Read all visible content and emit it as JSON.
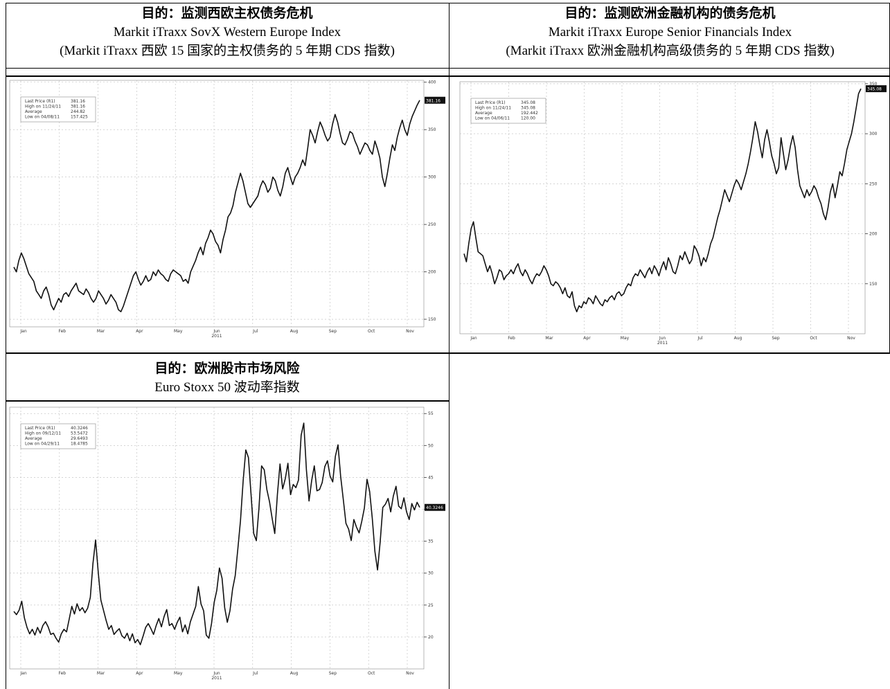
{
  "panels": [
    {
      "title": "目的：监测西欧主权债务危机",
      "subtitle": "Markit iTraxx SovX Western Europe Index",
      "desc": "(Markit iTraxx 西欧 15 国家的主权债务的 5 年期 CDS 指数)"
    },
    {
      "title": "目的：监测欧洲金融机构的债务危机",
      "subtitle": "Markit iTraxx Europe Senior Financials Index",
      "desc": "(Markit iTraxx 欧洲金融机构高级债务的 5 年期 CDS 指数)"
    },
    {
      "title": "目的：欧洲股市市场风险",
      "subtitle": "Euro Stoxx 50 波动率指数",
      "desc": ""
    }
  ],
  "colors": {
    "line": "#111111",
    "grid": "#bbbbbb",
    "border": "#000000",
    "tag_bg": "#111111",
    "tag_text": "#ffffff"
  },
  "chart_data": [
    {
      "type": "line",
      "months": [
        "Jan",
        "Feb",
        "Mar",
        "Apr",
        "May",
        "Jun",
        "Jul",
        "Aug",
        "Sep",
        "Oct",
        "Nov"
      ],
      "year_label": "2011",
      "yticks": [
        150,
        200,
        250,
        300,
        350,
        400
      ],
      "ylim": [
        142,
        402
      ],
      "last_tag": "381.16",
      "legend": [
        {
          "label": "Last Price (R1)",
          "value": "381.16"
        },
        {
          "label": "High on 11/24/11",
          "value": "381.16"
        },
        {
          "label": "Average",
          "value": "244.82"
        },
        {
          "label": "Low on 04/08/11",
          "value": "157.425"
        }
      ],
      "values": [
        205,
        200,
        212,
        220,
        214,
        206,
        198,
        194,
        190,
        180,
        176,
        172,
        180,
        184,
        176,
        165,
        160,
        166,
        172,
        168,
        176,
        178,
        174,
        180,
        184,
        188,
        180,
        178,
        176,
        182,
        178,
        172,
        168,
        172,
        180,
        176,
        172,
        166,
        170,
        176,
        172,
        168,
        160,
        158,
        164,
        172,
        180,
        188,
        196,
        200,
        192,
        186,
        190,
        196,
        190,
        192,
        200,
        196,
        202,
        198,
        196,
        192,
        190,
        198,
        202,
        200,
        198,
        196,
        190,
        192,
        188,
        200,
        206,
        212,
        220,
        226,
        218,
        230,
        236,
        244,
        240,
        232,
        228,
        220,
        234,
        244,
        258,
        262,
        270,
        284,
        294,
        304,
        296,
        284,
        272,
        268,
        272,
        276,
        280,
        290,
        296,
        292,
        284,
        288,
        300,
        296,
        286,
        280,
        290,
        304,
        310,
        300,
        292,
        300,
        304,
        310,
        318,
        312,
        330,
        350,
        344,
        336,
        348,
        358,
        352,
        344,
        338,
        342,
        356,
        366,
        358,
        346,
        336,
        334,
        340,
        348,
        346,
        338,
        332,
        324,
        330,
        336,
        334,
        328,
        324,
        338,
        330,
        320,
        300,
        290,
        304,
        320,
        334,
        328,
        342,
        352,
        360,
        350,
        344,
        356,
        364,
        370,
        376,
        381
      ]
    },
    {
      "type": "line",
      "months": [
        "Jan",
        "Feb",
        "Mar",
        "Apr",
        "May",
        "Jun",
        "Jul",
        "Aug",
        "Sep",
        "Oct",
        "Nov"
      ],
      "year_label": "2011",
      "yticks": [
        150,
        200,
        250,
        300,
        350
      ],
      "ylim": [
        100,
        352
      ],
      "last_tag": "345.08",
      "legend": [
        {
          "label": "Last Price (R1)",
          "value": "345.08"
        },
        {
          "label": "High on 11/24/11",
          "value": "345.08"
        },
        {
          "label": "Average",
          "value": "192.442"
        },
        {
          "label": "Low on 04/06/11",
          "value": "120.00"
        }
      ],
      "values": [
        180,
        172,
        190,
        205,
        212,
        196,
        182,
        180,
        178,
        170,
        162,
        168,
        160,
        150,
        156,
        164,
        162,
        154,
        158,
        160,
        164,
        160,
        166,
        170,
        162,
        158,
        164,
        160,
        154,
        150,
        156,
        160,
        158,
        162,
        168,
        164,
        158,
        150,
        148,
        152,
        150,
        146,
        140,
        146,
        138,
        136,
        142,
        128,
        122,
        128,
        126,
        132,
        130,
        136,
        134,
        130,
        138,
        134,
        130,
        128,
        134,
        132,
        136,
        138,
        134,
        140,
        142,
        138,
        140,
        146,
        150,
        148,
        156,
        160,
        158,
        164,
        160,
        156,
        162,
        166,
        160,
        168,
        164,
        158,
        166,
        172,
        164,
        176,
        170,
        162,
        160,
        168,
        178,
        174,
        182,
        176,
        170,
        174,
        188,
        184,
        178,
        168,
        176,
        172,
        180,
        190,
        196,
        206,
        216,
        224,
        234,
        244,
        238,
        232,
        240,
        248,
        254,
        250,
        244,
        252,
        260,
        270,
        282,
        296,
        312,
        302,
        288,
        276,
        294,
        304,
        292,
        278,
        270,
        260,
        266,
        296,
        280,
        264,
        274,
        288,
        298,
        286,
        264,
        248,
        242,
        236,
        244,
        238,
        242,
        248,
        244,
        236,
        230,
        220,
        214,
        226,
        242,
        250,
        236,
        248,
        262,
        258,
        270,
        284,
        292,
        300,
        312,
        326,
        340,
        345
      ]
    },
    {
      "type": "line",
      "months": [
        "Jan",
        "Feb",
        "Mar",
        "Apr",
        "May",
        "Jun",
        "Jul",
        "Aug",
        "Sep",
        "Oct",
        "Nov"
      ],
      "year_label": "2011",
      "yticks": [
        20,
        25,
        30,
        35,
        40,
        45,
        50,
        55
      ],
      "ylim": [
        15,
        56
      ],
      "last_tag": "40.3246",
      "legend": [
        {
          "label": "Last Price (R1)",
          "value": "40.3246"
        },
        {
          "label": "High on 09/12/11",
          "value": "53.5472"
        },
        {
          "label": "Average",
          "value": "29.6493"
        },
        {
          "label": "Low on 04/29/11",
          "value": "18.4785"
        }
      ],
      "values": [
        24,
        23.5,
        24.2,
        25.6,
        23,
        21.5,
        20.5,
        21.2,
        20.3,
        21.5,
        20.6,
        21.8,
        22.4,
        21.6,
        20.4,
        20.6,
        19.8,
        19.2,
        20.5,
        21.2,
        20.8,
        22.8,
        24.8,
        23.6,
        25.2,
        24.1,
        24.6,
        23.8,
        24.5,
        26.2,
        31.5,
        35.2,
        30.2,
        25.8,
        24.2,
        22.6,
        21.2,
        21.8,
        20.4,
        20.9,
        21.3,
        20.2,
        19.8,
        20.6,
        19.4,
        20.5,
        19.1,
        19.6,
        18.8,
        20.1,
        21.5,
        22.1,
        21.3,
        20.4,
        21.8,
        22.9,
        21.6,
        23.2,
        24.3,
        21.8,
        22.1,
        21.2,
        22.3,
        23.1,
        20.8,
        21.9,
        20.5,
        22.4,
        23.6,
        24.8,
        27.9,
        25.2,
        24.1,
        20.3,
        19.8,
        22.1,
        25.4,
        27.3,
        30.8,
        29.2,
        24.6,
        22.3,
        24.1,
        27.5,
        29.6,
        33.8,
        38.2,
        44.5,
        49.3,
        48.1,
        42.3,
        36.2,
        35.1,
        40.2,
        46.8,
        46.2,
        43.1,
        41.2,
        38.6,
        36.2,
        42.3,
        47.1,
        43.2,
        44.8,
        47.2,
        42.3,
        43.9,
        43.4,
        44.6,
        51.6,
        53.5,
        46.2,
        41.3,
        44.5,
        46.8,
        42.9,
        43.1,
        44.2,
        46.7,
        47.6,
        45.2,
        44.3,
        48.3,
        50.1,
        45.2,
        41.6,
        37.8,
        36.9,
        35.1,
        38.4,
        37.2,
        36.3,
        38.1,
        40.2,
        44.7,
        42.8,
        38.6,
        33.4,
        30.5,
        34.9,
        40.3,
        40.8,
        41.7,
        39.6,
        42.1,
        43.6,
        40.5,
        40.1,
        41.8,
        39.6,
        38.4,
        40.9,
        39.9,
        41.1,
        40.3
      ]
    }
  ]
}
